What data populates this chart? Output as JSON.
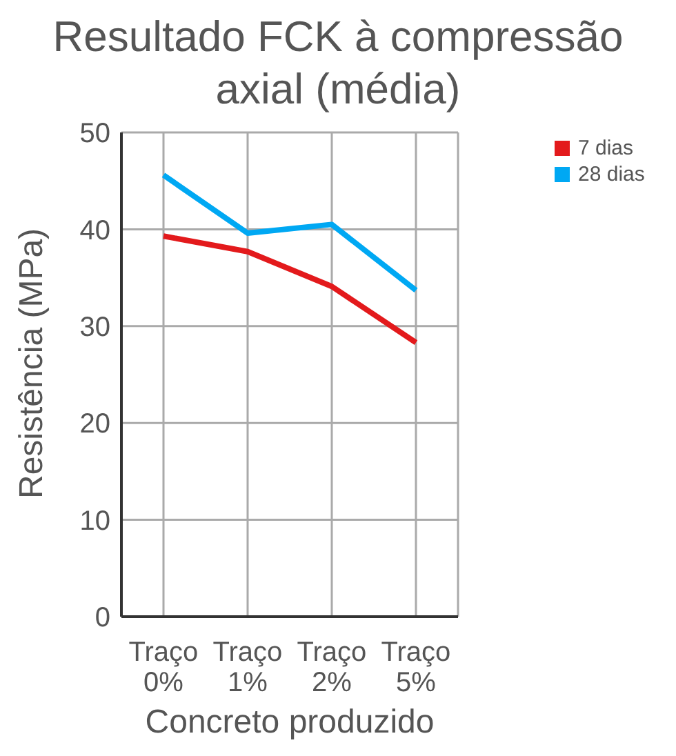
{
  "chart_data": {
    "type": "line",
    "title": "Resultado FCK à compressão axial (média)",
    "xlabel": "Concreto produzido",
    "ylabel": "Resistência (MPa)",
    "categories": [
      "Traço 0%",
      "Traço 1%",
      "Traço 2%",
      "Traço 5%"
    ],
    "series": [
      {
        "name": "7 dias",
        "color": "#e31a1c",
        "values": [
          39.3,
          37.7,
          34.1,
          28.3
        ]
      },
      {
        "name": "28 dias",
        "color": "#00a8f3",
        "values": [
          45.6,
          39.6,
          40.5,
          33.7
        ]
      }
    ],
    "ylim": [
      0,
      50
    ],
    "yticks": [
      0,
      10,
      20,
      30,
      40,
      50
    ],
    "grid": true,
    "legend": "top right",
    "marker": "none",
    "line_style": "solid"
  }
}
